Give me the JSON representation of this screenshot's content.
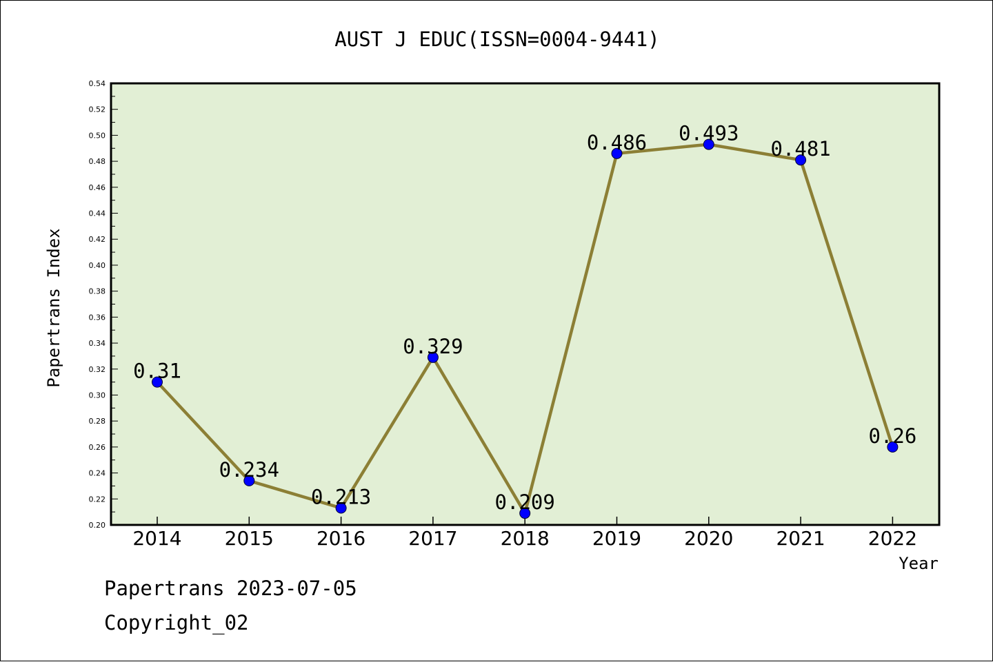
{
  "footer": {
    "line1": "Papertrans 2023-07-05",
    "line2": "Copyright_02"
  },
  "colors": {
    "plot_background": "#e2efd5",
    "line": "#8c7f35",
    "marker": "#0000ff",
    "axis": "#000000"
  },
  "chart_data": {
    "type": "line",
    "title": "AUST J EDUC(ISSN=0004-9441)",
    "xlabel": "Year",
    "ylabel": "Papertrans Index",
    "categories": [
      "2014",
      "2015",
      "2016",
      "2017",
      "2018",
      "2019",
      "2020",
      "2021",
      "2022"
    ],
    "series": [
      {
        "values": [
          0.31,
          0.234,
          0.213,
          0.329,
          0.209,
          0.486,
          0.493,
          0.481,
          0.26
        ],
        "labels": [
          "0.31",
          "0.234",
          "0.213",
          "0.329",
          "0.209",
          "0.486",
          "0.493",
          "0.481",
          "0.26"
        ]
      }
    ],
    "ylim": [
      0.2,
      0.54
    ],
    "yticks": [
      "0.20",
      "0.22",
      "0.24",
      "0.26",
      "0.28",
      "0.30",
      "0.32",
      "0.34",
      "0.36",
      "0.38",
      "0.40",
      "0.42",
      "0.44",
      "0.46",
      "0.48",
      "0.50",
      "0.52",
      "0.54"
    ],
    "grid": false,
    "legend": "none"
  }
}
